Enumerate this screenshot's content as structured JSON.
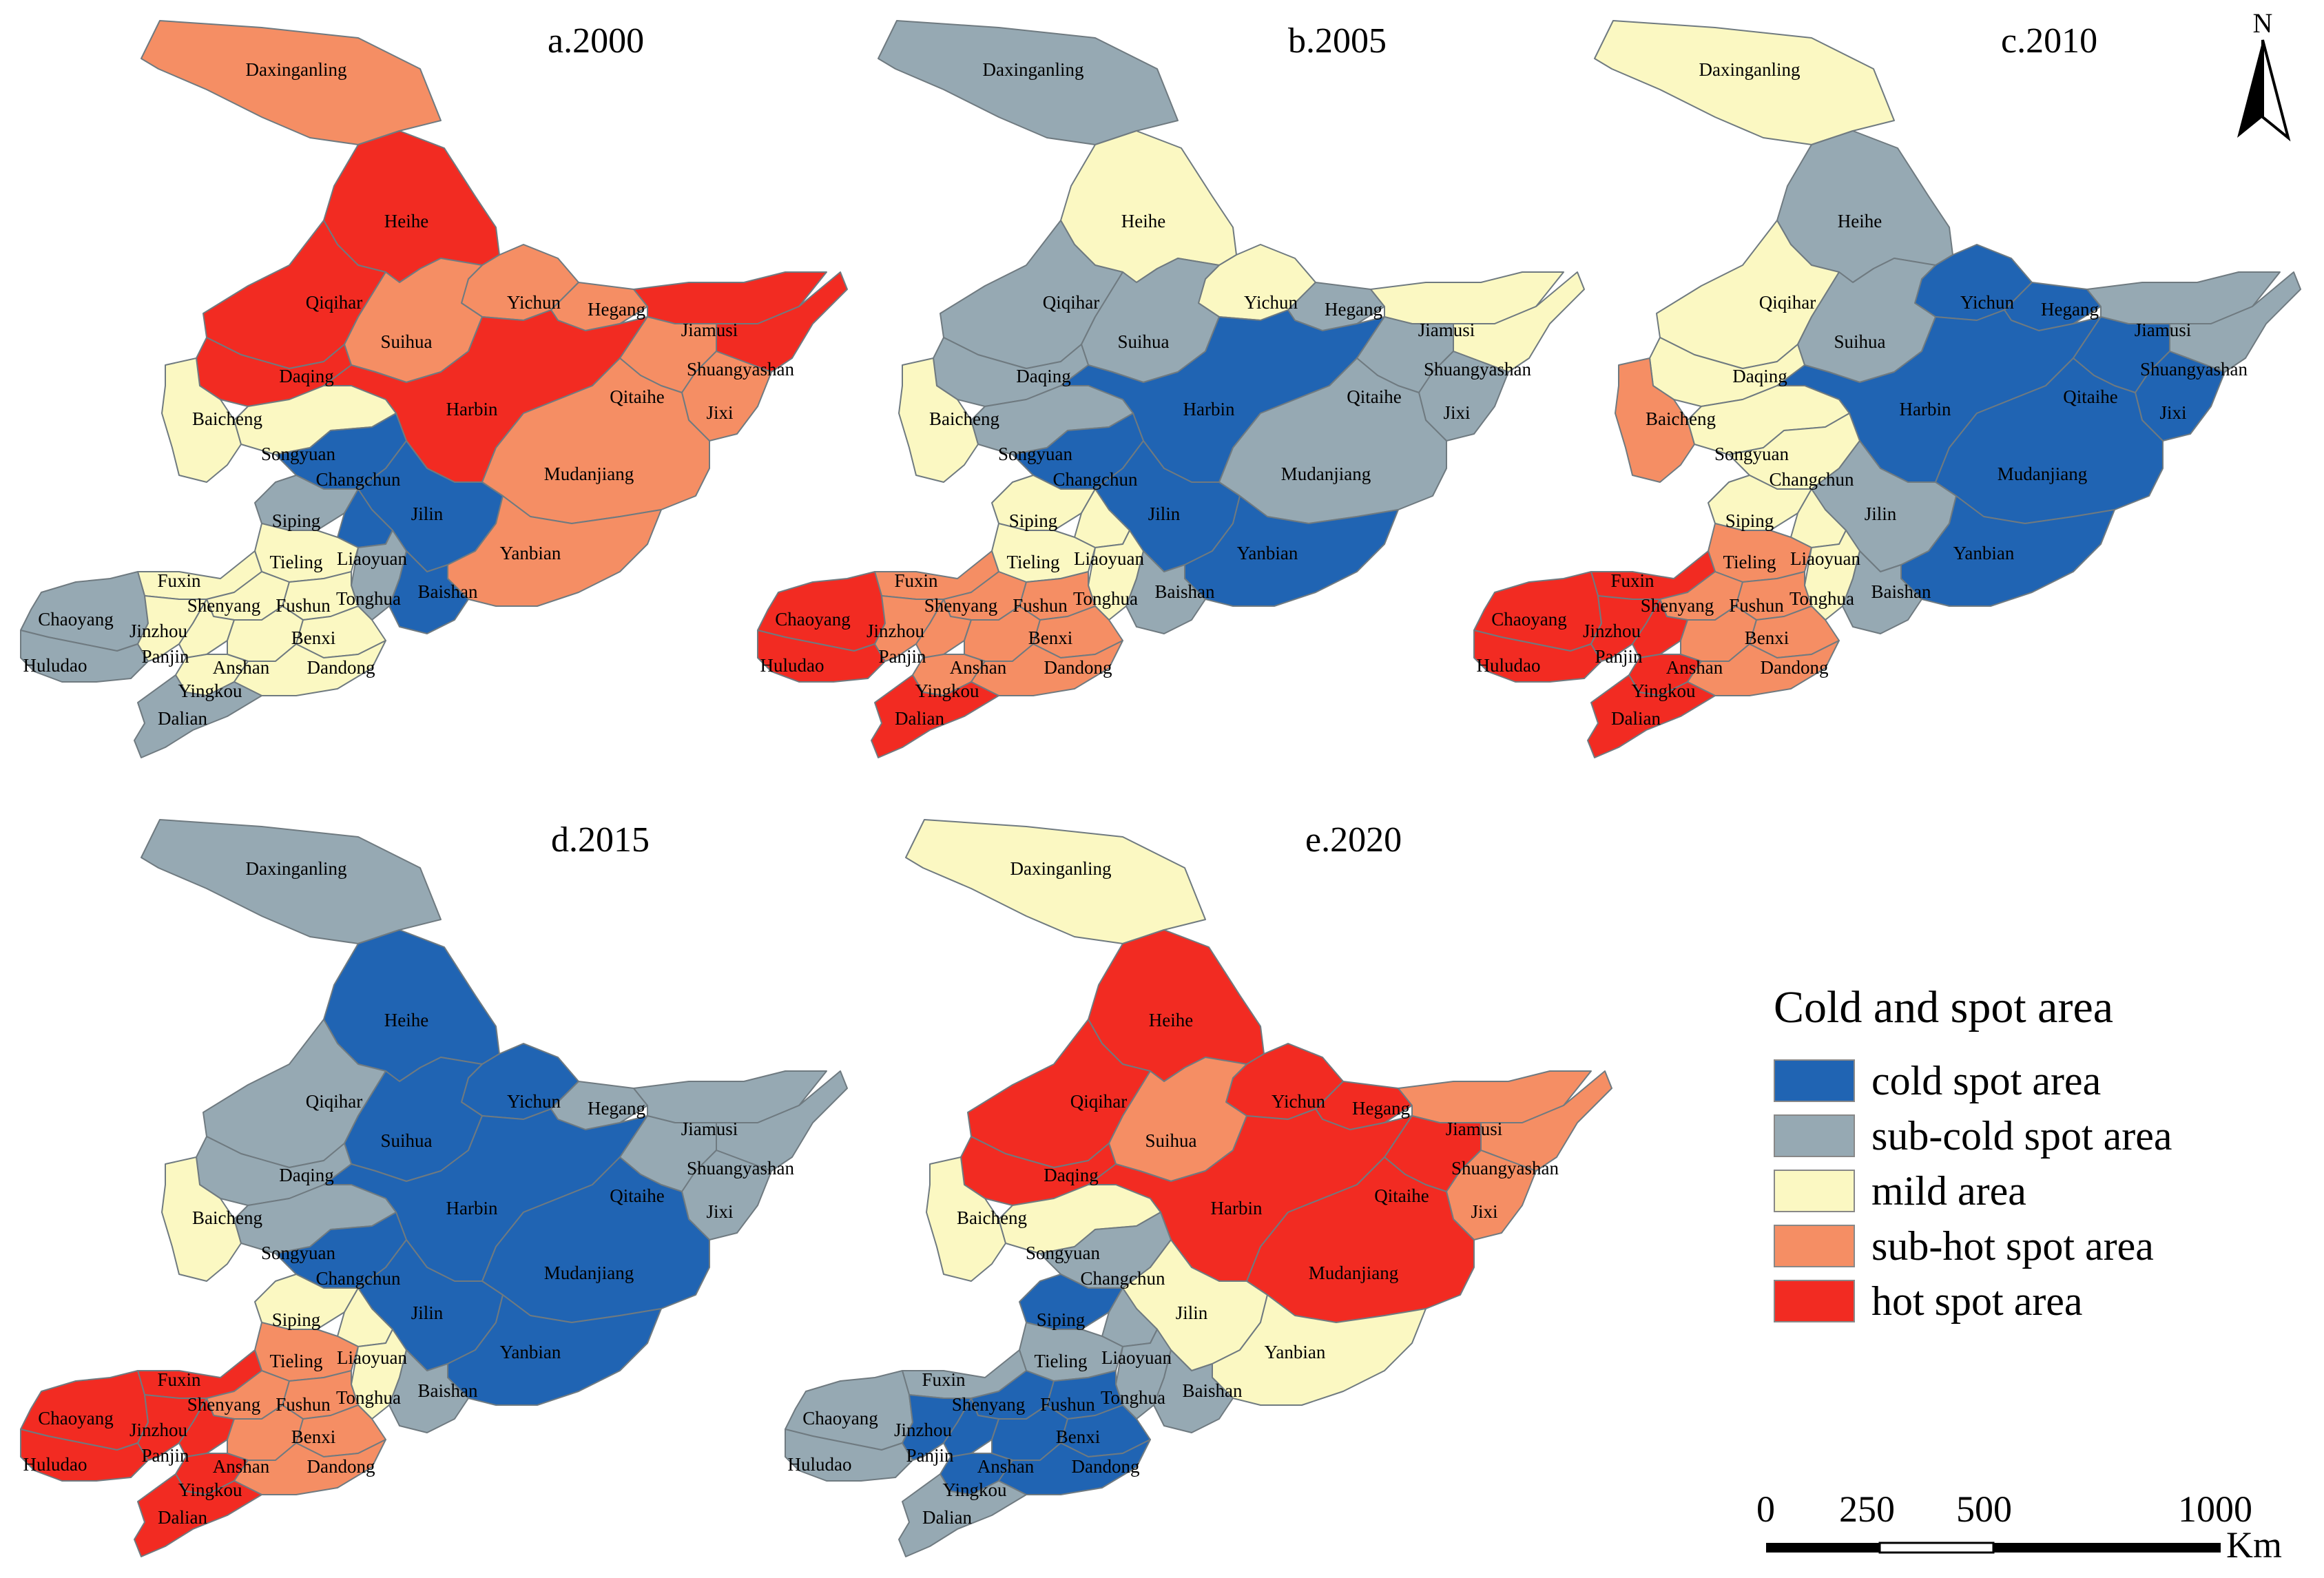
{
  "colors": {
    "cold": "#2064b3",
    "subcold": "#96a9b3",
    "mild": "#fbf8c2",
    "subhot": "#f58e64",
    "hot": "#f22b22",
    "border": "#6f7a80"
  },
  "panels": [
    {
      "id": "a",
      "title": "a.2000",
      "classes": {
        "Daxinganling": "subhot",
        "Heihe": "hot",
        "Qiqihar": "hot",
        "Yichun": "subhot",
        "Hegang": "subhot",
        "Jiamusi": "hot",
        "Shuangyashan": "hot",
        "Suihua": "subhot",
        "Daqing": "hot",
        "Harbin": "hot",
        "Qitaihe": "subhot",
        "Jixi": "subhot",
        "Baicheng": "mild",
        "Songyuan": "mild",
        "Changchun": "cold",
        "Jilin": "cold",
        "Mudanjiang": "subhot",
        "Yanbian": "subhot",
        "Siping": "subcold",
        "Liaoyuan": "cold",
        "Tonghua": "subcold",
        "Baishan": "cold",
        "Tieling": "mild",
        "Fuxin": "mild",
        "Chaoyang": "subcold",
        "Huludao": "subcold",
        "Jinzhou": "mild",
        "Panjin": "mild",
        "Shenyang": "mild",
        "Fushun": "mild",
        "Benxi": "mild",
        "Anshan": "mild",
        "Yingkou": "mild",
        "Dandong": "mild",
        "Dalian": "subcold"
      }
    },
    {
      "id": "b",
      "title": "b.2005",
      "classes": {
        "Daxinganling": "subcold",
        "Heihe": "mild",
        "Qiqihar": "subcold",
        "Yichun": "mild",
        "Hegang": "subcold",
        "Jiamusi": "mild",
        "Shuangyashan": "mild",
        "Suihua": "subcold",
        "Daqing": "subcold",
        "Harbin": "cold",
        "Qitaihe": "subcold",
        "Jixi": "subcold",
        "Baicheng": "mild",
        "Songyuan": "subcold",
        "Changchun": "cold",
        "Jilin": "cold",
        "Mudanjiang": "subcold",
        "Yanbian": "cold",
        "Siping": "mild",
        "Liaoyuan": "mild",
        "Tonghua": "mild",
        "Baishan": "subcold",
        "Tieling": "mild",
        "Fuxin": "subhot",
        "Chaoyang": "hot",
        "Huludao": "hot",
        "Jinzhou": "subhot",
        "Panjin": "subhot",
        "Shenyang": "subhot",
        "Fushun": "subhot",
        "Benxi": "subhot",
        "Anshan": "subhot",
        "Yingkou": "subhot",
        "Dandong": "subhot",
        "Dalian": "hot"
      }
    },
    {
      "id": "c",
      "title": "c.2010",
      "classes": {
        "Daxinganling": "mild",
        "Heihe": "subcold",
        "Qiqihar": "mild",
        "Yichun": "cold",
        "Hegang": "cold",
        "Jiamusi": "subcold",
        "Shuangyashan": "subcold",
        "Suihua": "subcold",
        "Daqing": "mild",
        "Harbin": "cold",
        "Qitaihe": "cold",
        "Jixi": "cold",
        "Baicheng": "subhot",
        "Songyuan": "mild",
        "Changchun": "mild",
        "Jilin": "subcold",
        "Mudanjiang": "cold",
        "Yanbian": "cold",
        "Siping": "mild",
        "Liaoyuan": "mild",
        "Tonghua": "mild",
        "Baishan": "subcold",
        "Tieling": "subhot",
        "Fuxin": "hot",
        "Chaoyang": "hot",
        "Huludao": "hot",
        "Jinzhou": "hot",
        "Panjin": "hot",
        "Shenyang": "subhot",
        "Fushun": "subhot",
        "Benxi": "subhot",
        "Anshan": "subhot",
        "Yingkou": "hot",
        "Dandong": "subhot",
        "Dalian": "hot"
      }
    },
    {
      "id": "d",
      "title": "d.2015",
      "classes": {
        "Daxinganling": "subcold",
        "Heihe": "cold",
        "Qiqihar": "subcold",
        "Yichun": "cold",
        "Hegang": "subcold",
        "Jiamusi": "subcold",
        "Shuangyashan": "subcold",
        "Suihua": "cold",
        "Daqing": "subcold",
        "Harbin": "cold",
        "Qitaihe": "subcold",
        "Jixi": "subcold",
        "Baicheng": "mild",
        "Songyuan": "subcold",
        "Changchun": "cold",
        "Jilin": "cold",
        "Mudanjiang": "cold",
        "Yanbian": "cold",
        "Siping": "mild",
        "Liaoyuan": "mild",
        "Tonghua": "mild",
        "Baishan": "subcold",
        "Tieling": "subhot",
        "Fuxin": "hot",
        "Chaoyang": "hot",
        "Huludao": "hot",
        "Jinzhou": "hot",
        "Panjin": "hot",
        "Shenyang": "subhot",
        "Fushun": "subhot",
        "Benxi": "subhot",
        "Anshan": "subhot",
        "Yingkou": "hot",
        "Dandong": "subhot",
        "Dalian": "hot"
      }
    },
    {
      "id": "e",
      "title": "e.2020",
      "classes": {
        "Daxinganling": "mild",
        "Heihe": "hot",
        "Qiqihar": "hot",
        "Yichun": "hot",
        "Hegang": "hot",
        "Jiamusi": "subhot",
        "Shuangyashan": "subhot",
        "Suihua": "subhot",
        "Daqing": "hot",
        "Harbin": "hot",
        "Qitaihe": "hot",
        "Jixi": "subhot",
        "Baicheng": "mild",
        "Songyuan": "mild",
        "Changchun": "subcold",
        "Jilin": "mild",
        "Mudanjiang": "hot",
        "Yanbian": "mild",
        "Siping": "cold",
        "Liaoyuan": "subcold",
        "Tonghua": "subcold",
        "Baishan": "subcold",
        "Tieling": "subcold",
        "Fuxin": "subcold",
        "Chaoyang": "subcold",
        "Huludao": "subcold",
        "Jinzhou": "cold",
        "Panjin": "cold",
        "Shenyang": "cold",
        "Fushun": "cold",
        "Benxi": "cold",
        "Anshan": "cold",
        "Yingkou": "cold",
        "Dandong": "cold",
        "Dalian": "subcold"
      }
    }
  ],
  "legend": {
    "title": "Cold and spot area",
    "items": [
      {
        "key": "cold",
        "label": "cold spot area"
      },
      {
        "key": "subcold",
        "label": "sub-cold spot area"
      },
      {
        "key": "mild",
        "label": "mild area"
      },
      {
        "key": "subhot",
        "label": "sub-hot spot area"
      },
      {
        "key": "hot",
        "label": "hot spot area"
      }
    ]
  },
  "scale_bar": {
    "ticks": [
      "0",
      "250",
      "500",
      "1000"
    ],
    "unit": "Km"
  },
  "north_arrow": {
    "letter": "N",
    "icon": "north-arrow-icon"
  }
}
